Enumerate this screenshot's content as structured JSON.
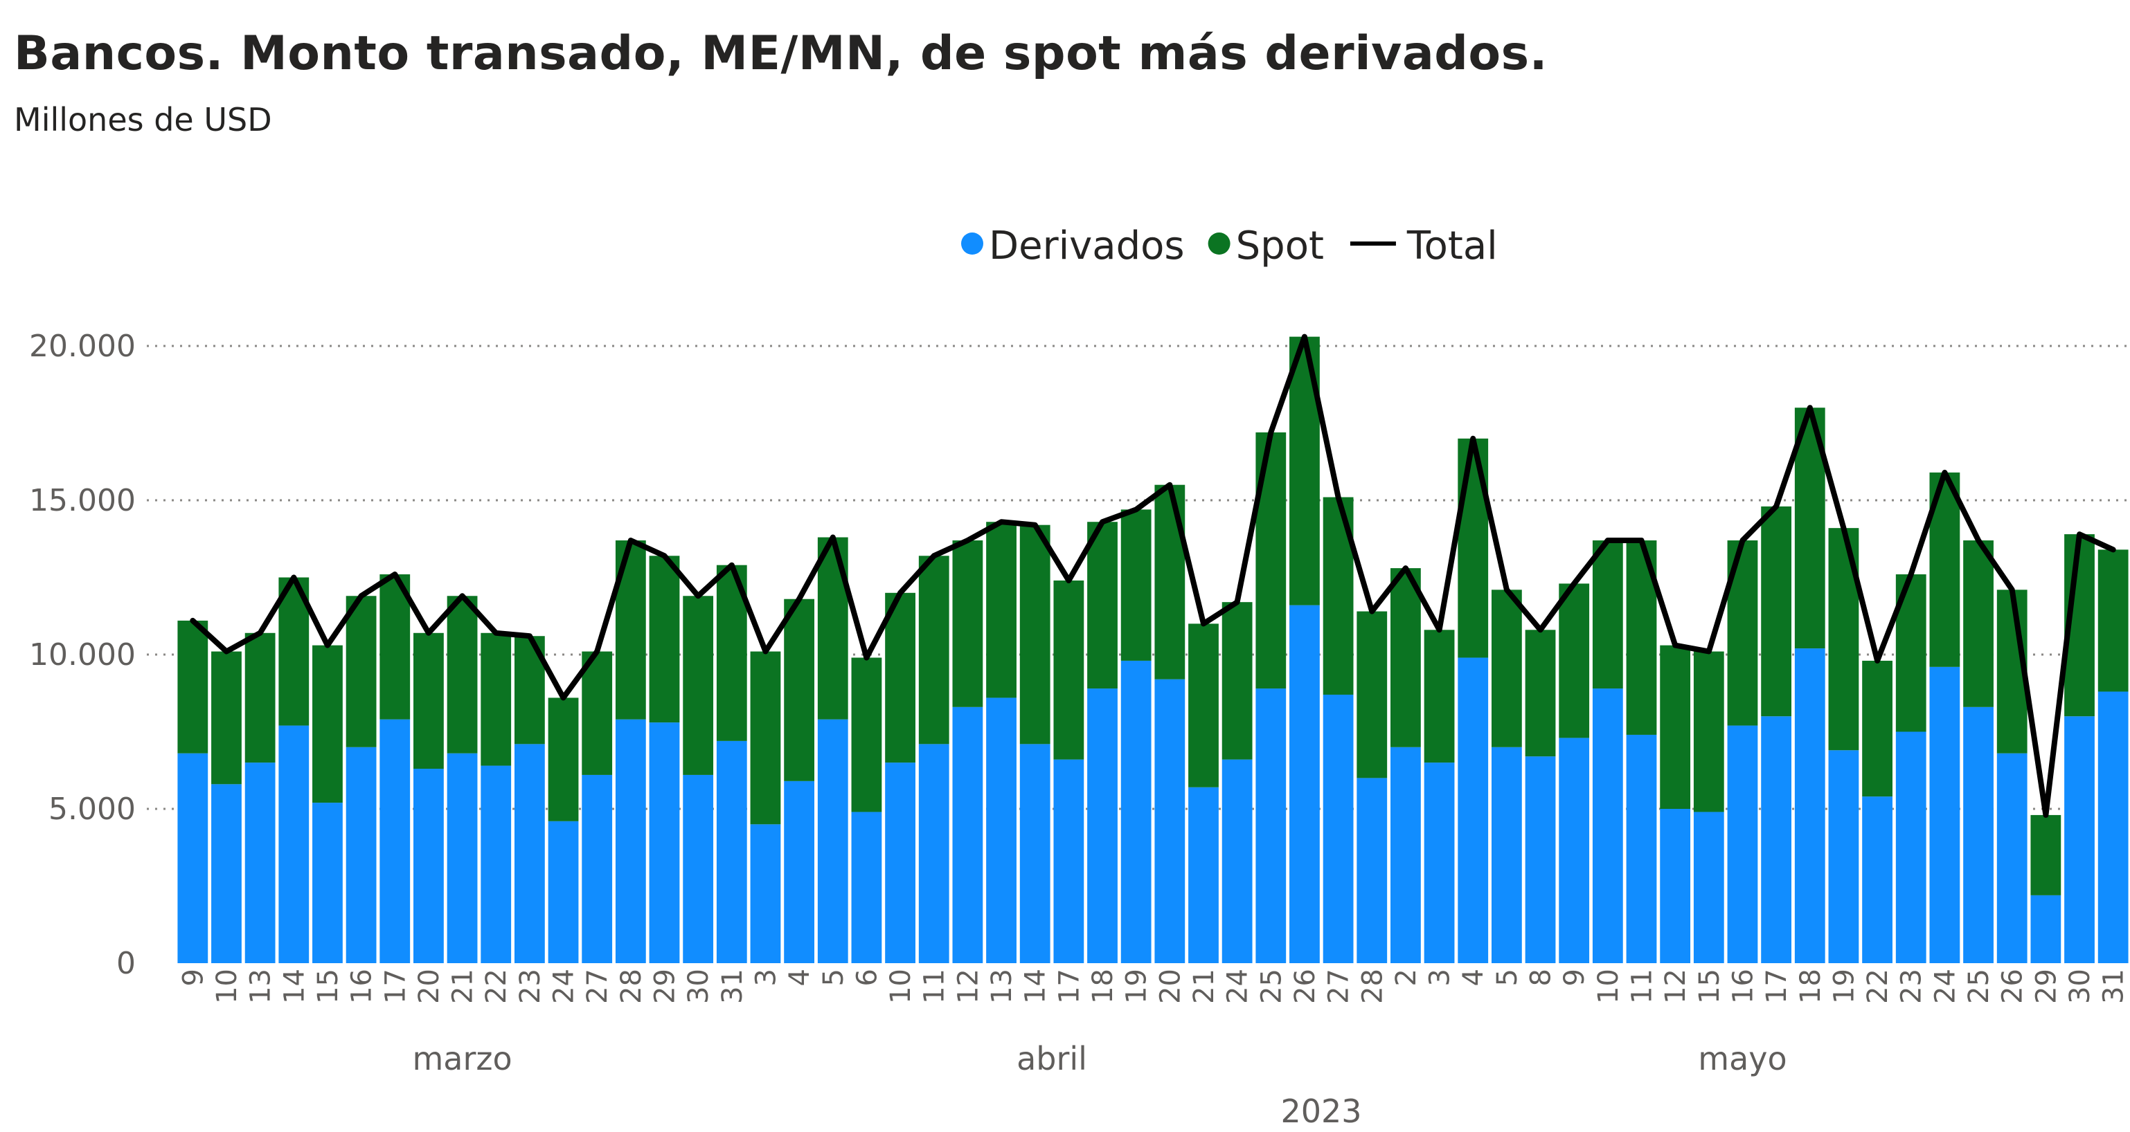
{
  "chart_data": {
    "type": "bar",
    "stacked": true,
    "title": "Bancos. Monto transado, ME/MN, de spot más derivados.",
    "subtitle": "Millones de USD",
    "legend": {
      "position": "top-center",
      "entries": [
        {
          "name": "Derivados",
          "marker": "circle",
          "color": "#118DFF"
        },
        {
          "name": "Spot",
          "marker": "circle",
          "color": "#0B7422"
        },
        {
          "name": "Total",
          "marker": "line",
          "color": "#000000"
        }
      ]
    },
    "ylim": [
      0,
      20000
    ],
    "yticks": [
      0,
      5000,
      10000,
      15000,
      20000
    ],
    "ytick_labels": [
      "0",
      "5.000",
      "10.000",
      "15.000",
      "20.000"
    ],
    "grid": true,
    "x_year": "2023",
    "months": [
      {
        "label": "marzo",
        "start": 0,
        "end": 16
      },
      {
        "label": "abril",
        "start": 17,
        "end": 34
      },
      {
        "label": "mayo",
        "start": 35,
        "end": 57
      }
    ],
    "x": [
      "9",
      "10",
      "13",
      "14",
      "15",
      "16",
      "17",
      "20",
      "21",
      "22",
      "23",
      "24",
      "27",
      "28",
      "29",
      "30",
      "31",
      "3",
      "4",
      "5",
      "6",
      "10",
      "11",
      "12",
      "13",
      "14",
      "17",
      "18",
      "19",
      "20",
      "21",
      "24",
      "25",
      "26",
      "27",
      "28",
      "2",
      "3",
      "4",
      "5",
      "8",
      "9",
      "10",
      "11",
      "12",
      "15",
      "16",
      "17",
      "18",
      "19",
      "22",
      "23",
      "24",
      "25",
      "26",
      "29",
      "30",
      "31"
    ],
    "series": [
      {
        "name": "Derivados",
        "color": "#118DFF",
        "values": [
          6800,
          5800,
          6500,
          7700,
          5200,
          7000,
          7900,
          6300,
          6800,
          6400,
          7100,
          4600,
          6100,
          7900,
          7800,
          6100,
          7200,
          4500,
          5900,
          7900,
          4900,
          6500,
          7100,
          8300,
          8600,
          7100,
          6600,
          8900,
          9800,
          9200,
          5700,
          6600,
          8900,
          11600,
          8700,
          6000,
          7000,
          6500,
          9900,
          7000,
          6700,
          7300,
          8900,
          7400,
          5000,
          4900,
          7700,
          8000,
          10200,
          6900,
          5400,
          7500,
          9600,
          8300,
          6800,
          2200,
          8000,
          8800
        ]
      },
      {
        "name": "Spot",
        "color": "#0B7422",
        "values": [
          4300,
          4300,
          4200,
          4800,
          5100,
          4900,
          4700,
          4400,
          5100,
          4300,
          3500,
          4000,
          4000,
          5800,
          5400,
          5800,
          5700,
          5600,
          5900,
          5900,
          5000,
          5500,
          6100,
          5400,
          5700,
          7100,
          5800,
          5400,
          4900,
          6300,
          5300,
          5100,
          8300,
          8700,
          6400,
          5400,
          5800,
          4300,
          7100,
          5100,
          4100,
          5000,
          4800,
          6300,
          5300,
          5200,
          6000,
          6800,
          7800,
          7200,
          4400,
          5100,
          6300,
          5400,
          5300,
          2600,
          5900,
          4600
        ]
      },
      {
        "name": "Total",
        "color": "#000000",
        "type": "line",
        "values": [
          11100,
          10100,
          10700,
          12500,
          10300,
          11900,
          12600,
          10700,
          11900,
          10700,
          10600,
          8600,
          10100,
          13700,
          13200,
          11900,
          12900,
          10100,
          11800,
          13800,
          9900,
          12000,
          13200,
          13700,
          14300,
          14200,
          12400,
          14300,
          14700,
          15500,
          11000,
          11700,
          17200,
          20300,
          15100,
          11400,
          12800,
          10800,
          17000,
          12100,
          10800,
          12300,
          13700,
          13700,
          10300,
          10100,
          13700,
          14800,
          18000,
          14100,
          9800,
          12600,
          15900,
          13700,
          12100,
          4800,
          13900,
          13400
        ]
      }
    ]
  }
}
